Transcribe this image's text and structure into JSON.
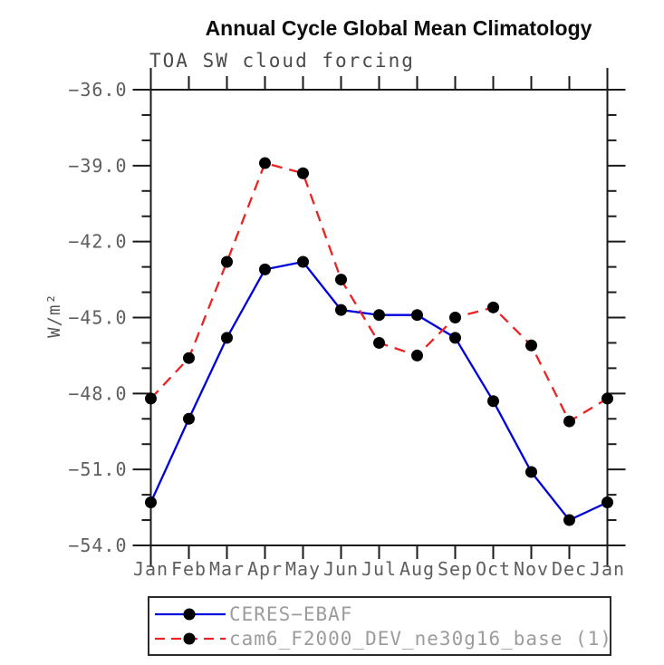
{
  "header": {
    "title": "Annual Cycle Global Mean Climatology",
    "subtitle": "TOA SW cloud forcing"
  },
  "chart_data": {
    "type": "line",
    "title": "Annual Cycle Global Mean Climatology",
    "subtitle": "TOA SW cloud forcing",
    "ylabel": "W/m²",
    "xlabel": "",
    "categories": [
      "Jan",
      "Feb",
      "Mar",
      "Apr",
      "May",
      "Jun",
      "Jul",
      "Aug",
      "Sep",
      "Oct",
      "Nov",
      "Dec",
      "Jan"
    ],
    "ylim": [
      -54,
      -36
    ],
    "ytick_step": 3,
    "yminor_step": 1,
    "ytick_labels": [
      "-36.0",
      "-39.0",
      "-42.0",
      "-45.0",
      "-48.0",
      "-51.0",
      "-54.0"
    ],
    "grid": false,
    "legend_position": "bottom",
    "axis_color": "#1a1a1a",
    "series": [
      {
        "name": "CERES-EBAF",
        "label": "CERES−EBAF",
        "color": "#0000dd",
        "style": "solid",
        "marker": "circle",
        "marker_color": "#000000",
        "values": [
          -52.3,
          -49.0,
          -45.8,
          -43.1,
          -42.8,
          -44.7,
          -44.9,
          -44.9,
          -45.8,
          -48.3,
          -51.1,
          -53.0,
          -52.3
        ]
      },
      {
        "name": "cam6_F2000_DEV_ne30g16_base (1)",
        "label": "cam6_F2000_DEV_ne30g16_base (1)",
        "color": "#ee2222",
        "style": "dashed",
        "marker": "circle",
        "marker_color": "#000000",
        "values": [
          -48.2,
          -46.6,
          -42.8,
          -38.9,
          -39.3,
          -43.5,
          -46.0,
          -46.5,
          -45.0,
          -44.6,
          -46.1,
          -49.1,
          -48.2
        ]
      }
    ]
  }
}
